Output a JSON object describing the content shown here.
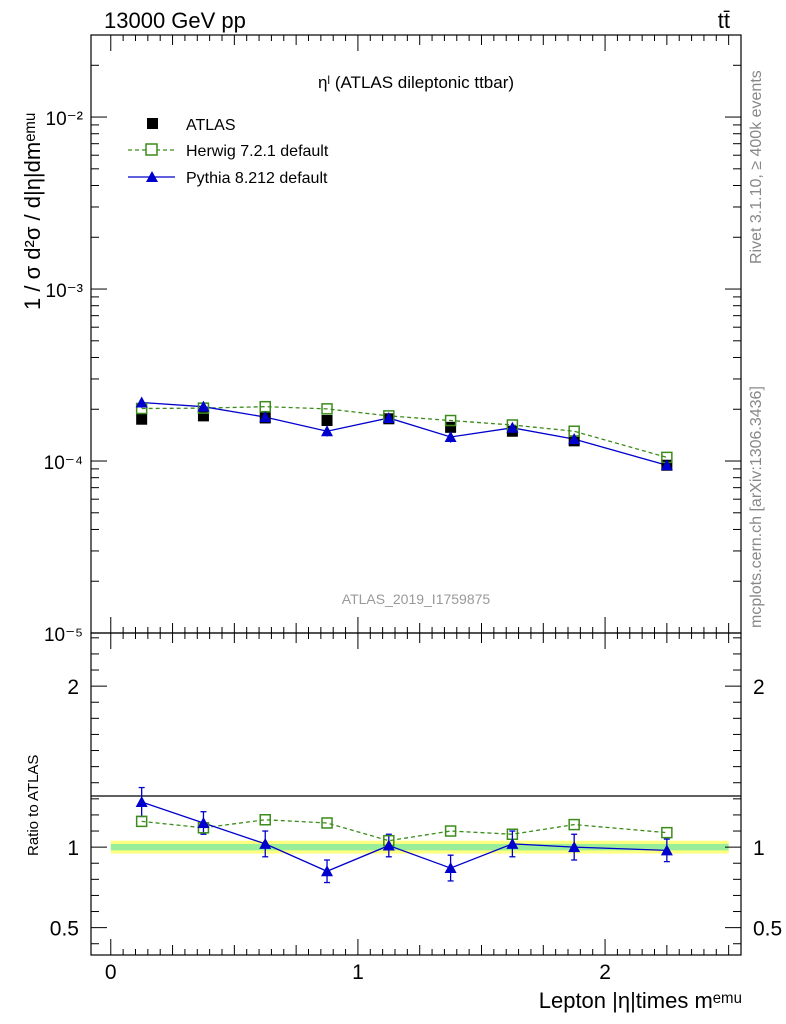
{
  "header": {
    "energy_label": "13000 GeV pp",
    "process_label": "tt̄"
  },
  "side": {
    "rivet_label": "Rivet 3.1.10, ≥ 400k events",
    "mcplots_label": "mcplots.cern.ch [arXiv:1306.3436]"
  },
  "chart_data": [
    {
      "type": "scatter",
      "title": "ηˡ (ATLAS dileptonic ttbar)",
      "analysis_label": "ATLAS_2019_I1759875",
      "ylabel": "1 / σ d²σ / d|η|dmᵉᵐᵘ",
      "xlabel": "Lepton |η|times mᵉᵐᵘ",
      "yscale": "log",
      "xlim": [
        -0.08,
        2.55
      ],
      "ylim": [
        1e-05,
        0.03
      ],
      "y_tick_labels": [
        "10⁻⁵",
        "10⁻⁴",
        "10⁻³",
        "10⁻²"
      ],
      "legend_position": "top-left",
      "x": [
        0.125,
        0.375,
        0.625,
        0.875,
        1.125,
        1.375,
        1.625,
        1.875,
        2.25
      ],
      "series": [
        {
          "name": "ATLAS",
          "style": "data",
          "color": "#000000",
          "values": [
            0.000175,
            0.000183,
            0.000178,
            0.000172,
            0.000176,
            0.000157,
            0.000149,
            0.000131,
            9.45e-05
          ]
        },
        {
          "name": "Herwig 7.2.1 default",
          "style": "open-square-dashed",
          "color": "#3b8c1a",
          "values": [
            0.000202,
            0.000203,
            0.000207,
            0.000201,
            0.000183,
            0.000172,
            0.000162,
            0.000149,
            0.000105
          ]
        },
        {
          "name": "Pythia 8.212 default",
          "style": "filled-triangle-solid",
          "color": "#0000cc",
          "values": [
            0.000219,
            0.000207,
            0.00018,
            0.000149,
            0.000178,
            0.000138,
            0.000156,
            0.000134,
            9.45e-05
          ],
          "err": [
            1.5e-05,
            1.1e-05,
            1e-05,
            1e-05,
            1e-05,
            1e-05,
            1e-05,
            1e-05,
            5e-06
          ]
        }
      ]
    },
    {
      "type": "scatter",
      "ylabel": "Ratio to ATLAS",
      "xlim": [
        -0.08,
        2.55
      ],
      "ylim": [
        0.33,
        2.33
      ],
      "y_ticks": [
        0.5,
        1,
        2
      ],
      "x_ticks": [
        0,
        1,
        2
      ],
      "band_colors": [
        "#ffff80",
        "#99ee99"
      ],
      "x": [
        0.125,
        0.375,
        0.625,
        0.875,
        1.125,
        1.375,
        1.625,
        1.875,
        2.25
      ],
      "series": [
        {
          "name": "Herwig 7.2.1 default",
          "color": "#3b8c1a",
          "values": [
            1.16,
            1.12,
            1.17,
            1.15,
            1.04,
            1.1,
            1.08,
            1.14,
            1.09
          ]
        },
        {
          "name": "Pythia 8.212 default",
          "color": "#0000cc",
          "values": [
            1.28,
            1.15,
            1.02,
            0.85,
            1.01,
            0.87,
            1.02,
            1.0,
            0.98
          ],
          "err": [
            0.09,
            0.07,
            0.08,
            0.07,
            0.07,
            0.08,
            0.08,
            0.08,
            0.07
          ]
        }
      ]
    }
  ]
}
